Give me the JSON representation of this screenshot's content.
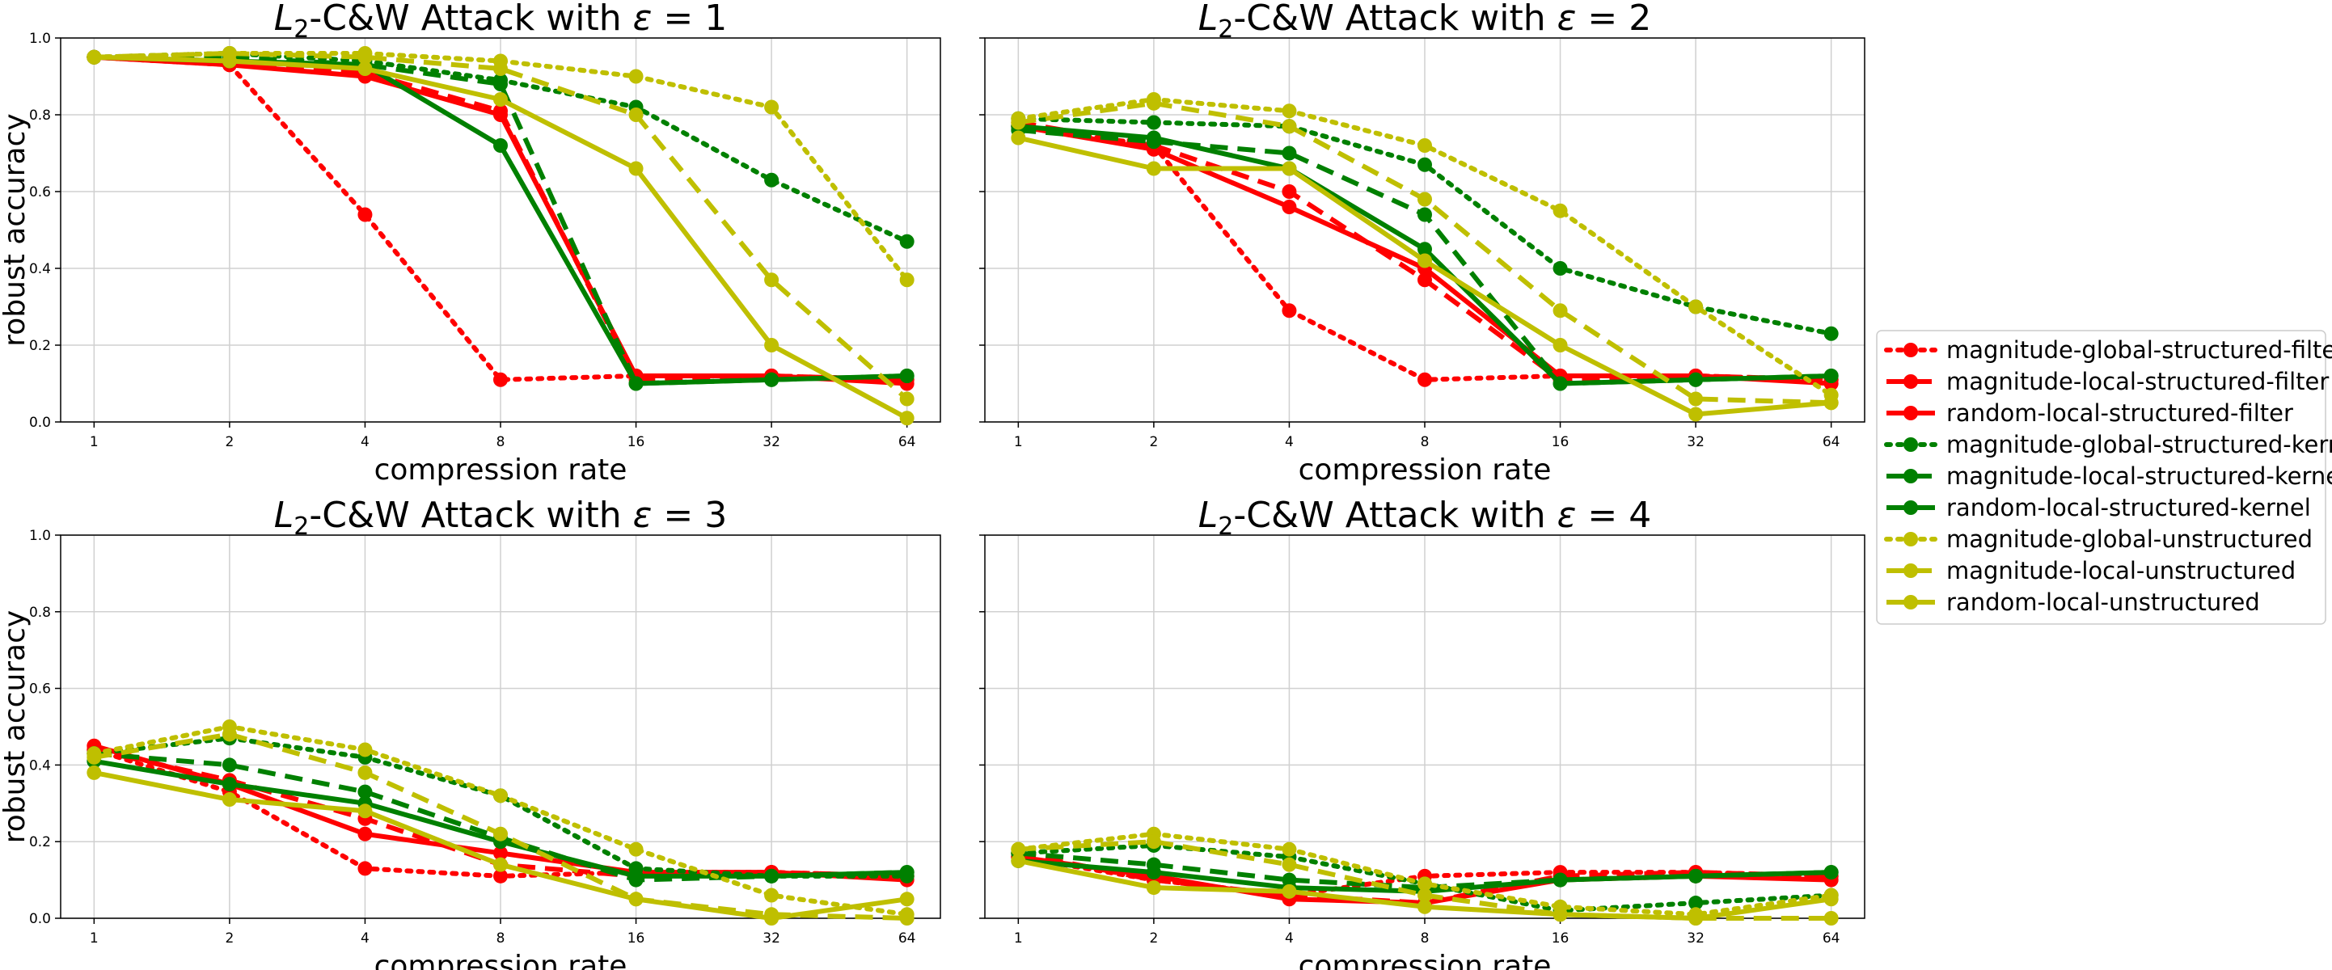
{
  "chart_data": {
    "type": "line",
    "x": [
      1,
      2,
      4,
      8,
      16,
      32,
      64
    ],
    "x_scale": "log2",
    "xlabel": "compression rate",
    "ylabel": "robust accuracy",
    "ylim": [
      0.0,
      1.0
    ],
    "yticks": [
      "0.0",
      "0.2",
      "0.4",
      "0.6",
      "0.8",
      "1.0"
    ],
    "grid": true,
    "legend_position": "right",
    "series_styles": [
      {
        "name": "magnitude-global-structured-filter",
        "color": "#ff0000",
        "dash": "dotted"
      },
      {
        "name": "magnitude-local-structured-filter",
        "color": "#ff0000",
        "dash": "dashed"
      },
      {
        "name": "random-local-structured-filter",
        "color": "#ff0000",
        "dash": "solid"
      },
      {
        "name": "magnitude-global-structured-kernel",
        "color": "#008000",
        "dash": "dotted"
      },
      {
        "name": "magnitude-local-structured-kernel",
        "color": "#008000",
        "dash": "dashed"
      },
      {
        "name": "random-local-structured-kernel",
        "color": "#008000",
        "dash": "solid"
      },
      {
        "name": "magnitude-global-unstructured",
        "color": "#bfbf00",
        "dash": "dotted"
      },
      {
        "name": "magnitude-local-unstructured",
        "color": "#bfbf00",
        "dash": "dashed"
      },
      {
        "name": "random-local-unstructured",
        "color": "#bfbf00",
        "dash": "solid"
      }
    ],
    "panels": [
      {
        "title_prefix": "L",
        "title_subscript": "2",
        "title_middle": "-C&W Attack with ",
        "title_symbol": "ε",
        "title_suffix": " = 1",
        "values": [
          [
            0.95,
            0.93,
            0.54,
            0.11,
            0.12,
            0.12,
            0.11
          ],
          [
            0.95,
            0.94,
            0.91,
            0.81,
            0.11,
            0.12,
            0.11
          ],
          [
            0.95,
            0.93,
            0.9,
            0.8,
            0.12,
            0.12,
            0.1
          ],
          [
            0.95,
            0.96,
            0.94,
            0.89,
            0.82,
            0.63,
            0.47
          ],
          [
            0.95,
            0.95,
            0.93,
            0.88,
            0.1,
            0.11,
            0.12
          ],
          [
            0.95,
            0.94,
            0.93,
            0.72,
            0.1,
            0.11,
            0.12
          ],
          [
            0.95,
            0.96,
            0.96,
            0.94,
            0.9,
            0.82,
            0.37
          ],
          [
            0.95,
            0.96,
            0.95,
            0.92,
            0.8,
            0.37,
            0.06
          ],
          [
            0.95,
            0.94,
            0.92,
            0.84,
            0.66,
            0.2,
            0.01
          ]
        ]
      },
      {
        "title_prefix": "L",
        "title_subscript": "2",
        "title_middle": "-C&W Attack with ",
        "title_symbol": "ε",
        "title_suffix": " = 2",
        "values": [
          [
            0.77,
            0.72,
            0.29,
            0.11,
            0.12,
            0.12,
            0.11
          ],
          [
            0.78,
            0.72,
            0.6,
            0.37,
            0.11,
            0.12,
            0.11
          ],
          [
            0.77,
            0.71,
            0.56,
            0.4,
            0.12,
            0.12,
            0.1
          ],
          [
            0.79,
            0.78,
            0.77,
            0.67,
            0.4,
            0.3,
            0.23
          ],
          [
            0.76,
            0.73,
            0.7,
            0.54,
            0.1,
            0.11,
            0.12
          ],
          [
            0.77,
            0.74,
            0.66,
            0.45,
            0.1,
            0.11,
            0.12
          ],
          [
            0.79,
            0.84,
            0.81,
            0.72,
            0.55,
            0.3,
            0.07
          ],
          [
            0.78,
            0.83,
            0.77,
            0.58,
            0.29,
            0.06,
            0.05
          ],
          [
            0.74,
            0.66,
            0.66,
            0.42,
            0.2,
            0.02,
            0.05
          ]
        ]
      },
      {
        "title_prefix": "L",
        "title_subscript": "2",
        "title_middle": "-C&W Attack with ",
        "title_symbol": "ε",
        "title_suffix": " = 3",
        "values": [
          [
            0.44,
            0.33,
            0.13,
            0.11,
            0.12,
            0.12,
            0.11
          ],
          [
            0.44,
            0.36,
            0.26,
            0.14,
            0.11,
            0.12,
            0.11
          ],
          [
            0.45,
            0.35,
            0.22,
            0.17,
            0.12,
            0.12,
            0.1
          ],
          [
            0.43,
            0.47,
            0.42,
            0.32,
            0.13,
            0.11,
            0.11
          ],
          [
            0.43,
            0.4,
            0.33,
            0.21,
            0.1,
            0.11,
            0.12
          ],
          [
            0.41,
            0.35,
            0.3,
            0.2,
            0.11,
            0.11,
            0.12
          ],
          [
            0.43,
            0.5,
            0.44,
            0.32,
            0.18,
            0.06,
            0.01
          ],
          [
            0.42,
            0.48,
            0.38,
            0.22,
            0.05,
            0.01,
            0.0
          ],
          [
            0.38,
            0.31,
            0.28,
            0.14,
            0.05,
            0.0,
            0.05
          ]
        ]
      },
      {
        "title_prefix": "L",
        "title_subscript": "2",
        "title_middle": "-C&W Attack with ",
        "title_symbol": "ε",
        "title_suffix": " = 4",
        "values": [
          [
            0.16,
            0.1,
            0.06,
            0.11,
            0.12,
            0.12,
            0.11
          ],
          [
            0.17,
            0.1,
            0.06,
            0.04,
            0.11,
            0.12,
            0.11
          ],
          [
            0.16,
            0.11,
            0.05,
            0.04,
            0.1,
            0.11,
            0.1
          ],
          [
            0.17,
            0.19,
            0.16,
            0.09,
            0.02,
            0.04,
            0.06
          ],
          [
            0.17,
            0.14,
            0.1,
            0.08,
            0.1,
            0.11,
            0.12
          ],
          [
            0.15,
            0.12,
            0.08,
            0.07,
            0.1,
            0.11,
            0.12
          ],
          [
            0.18,
            0.22,
            0.18,
            0.09,
            0.03,
            0.01,
            0.06
          ],
          [
            0.18,
            0.2,
            0.14,
            0.06,
            0.01,
            0.0,
            0.0
          ],
          [
            0.15,
            0.08,
            0.07,
            0.03,
            0.01,
            0.0,
            0.05
          ]
        ]
      }
    ]
  }
}
